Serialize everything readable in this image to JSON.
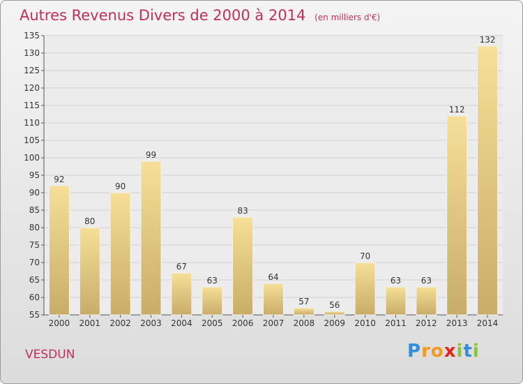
{
  "header": {
    "title": "Autres Revenus Divers de 2000 à 2014",
    "subtitle": "(en milliers d'€)"
  },
  "footer": {
    "commune": "VESDUN",
    "brand_letters": [
      {
        "char": "P",
        "color": "#2f8fd8"
      },
      {
        "char": "r",
        "color": "#f39a1e"
      },
      {
        "char": "o",
        "color": "#f39a1e"
      },
      {
        "char": "x",
        "color": "#e2261c"
      },
      {
        "char": "i",
        "color": "#8ac43f"
      },
      {
        "char": "t",
        "color": "#2f8fd8"
      },
      {
        "char": "i",
        "color": "#8ac43f"
      }
    ]
  },
  "chart_data": {
    "type": "bar",
    "title": "Autres Revenus Divers de 2000 à 2014",
    "subtitle": "(en milliers d'€)",
    "categories": [
      "2000",
      "2001",
      "2002",
      "2003",
      "2004",
      "2005",
      "2006",
      "2007",
      "2008",
      "2009",
      "2010",
      "2011",
      "2012",
      "2013",
      "2014"
    ],
    "values": [
      92,
      80,
      90,
      99,
      67,
      63,
      83,
      64,
      57,
      56,
      70,
      63,
      63,
      112,
      132
    ],
    "ylim": [
      55,
      135
    ],
    "yticks": [
      55,
      60,
      65,
      70,
      75,
      80,
      85,
      90,
      95,
      100,
      105,
      110,
      115,
      120,
      125,
      130,
      135
    ],
    "grid": true,
    "legend": "none",
    "colors": {
      "bar_light": "#f6df98",
      "bar_dark": "#c8ad68",
      "grid": "#cfcfcf",
      "title": "#c0305a",
      "plot_bg": "#ececec"
    }
  }
}
